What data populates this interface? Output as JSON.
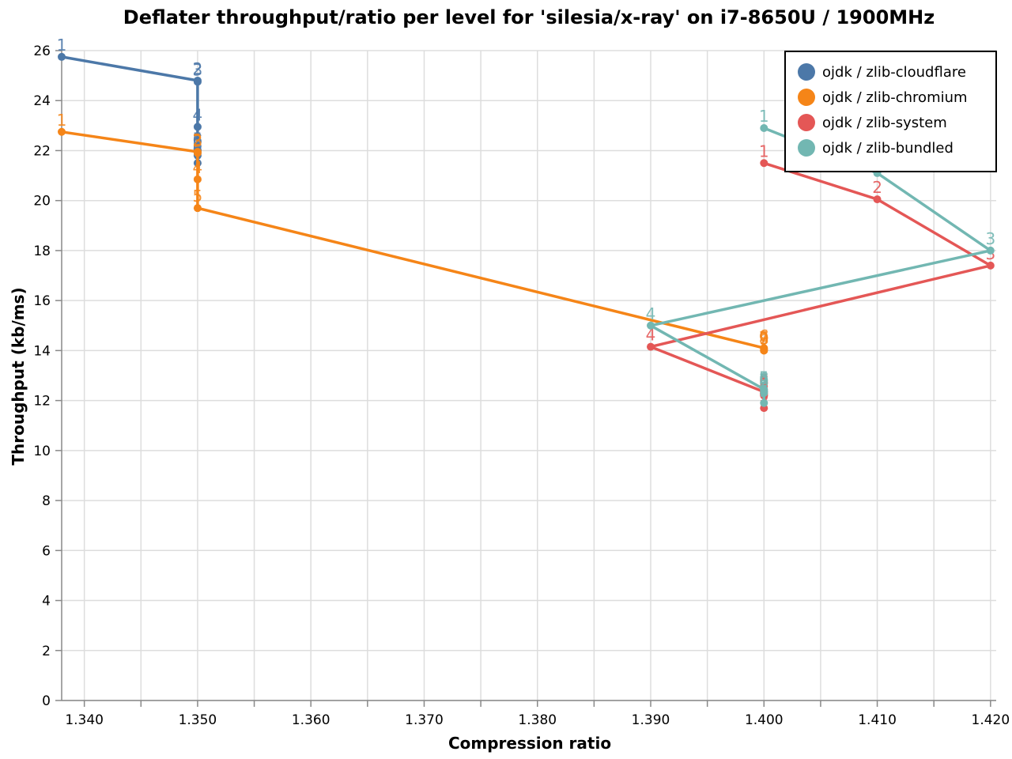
{
  "chart_data": {
    "type": "line",
    "title": "Deflater throughput/ratio per level for 'silesia/x-ray' on i7-8650U / 1900MHz",
    "xlabel": "Compression ratio",
    "ylabel": "Throughput (kb/ms)",
    "xlim": [
      1.338,
      1.4205
    ],
    "ylim": [
      0,
      26
    ],
    "x_ticks": [
      1.34,
      1.35,
      1.36,
      1.37,
      1.38,
      1.39,
      1.4,
      1.41,
      1.42
    ],
    "x_tick_labels": [
      "1.340",
      "1.350",
      "1.360",
      "1.370",
      "1.380",
      "1.390",
      "1.400",
      "1.410",
      "1.420"
    ],
    "y_ticks": [
      0,
      2,
      4,
      6,
      8,
      10,
      12,
      14,
      16,
      18,
      20,
      22,
      24,
      26
    ],
    "y_tick_labels": [
      "0",
      "2",
      "4",
      "6",
      "8",
      "10",
      "12",
      "14",
      "16",
      "18",
      "20",
      "22",
      "24",
      "26"
    ],
    "grid": true,
    "legend_position": "top-right",
    "series": [
      {
        "name": "ojdk / zlib-cloudflare",
        "color": "#4c78a8",
        "points": [
          {
            "label": "1",
            "x": 1.338,
            "y": 25.75
          },
          {
            "label": "2",
            "x": 1.35,
            "y": 24.8
          },
          {
            "label": "3",
            "x": 1.35,
            "y": 24.75
          },
          {
            "label": "4",
            "x": 1.35,
            "y": 22.95
          },
          {
            "label": "5",
            "x": 1.35,
            "y": 22.0
          },
          {
            "label": "6",
            "x": 1.35,
            "y": 21.95
          },
          {
            "label": "7",
            "x": 1.35,
            "y": 21.9
          },
          {
            "label": "8",
            "x": 1.35,
            "y": 21.8
          },
          {
            "label": "9",
            "x": 1.35,
            "y": 21.5
          }
        ]
      },
      {
        "name": "ojdk / zlib-chromium",
        "color": "#f58518",
        "points": [
          {
            "label": "1",
            "x": 1.338,
            "y": 22.75
          },
          {
            "label": "2",
            "x": 1.35,
            "y": 21.95
          },
          {
            "label": "3",
            "x": 1.35,
            "y": 21.9
          },
          {
            "label": "4",
            "x": 1.35,
            "y": 20.85
          },
          {
            "label": "5",
            "x": 1.35,
            "y": 19.7
          },
          {
            "label": "6",
            "x": 1.4,
            "y": 14.1
          },
          {
            "label": "7",
            "x": 1.4,
            "y": 14.05
          },
          {
            "label": "8",
            "x": 1.4,
            "y": 14.0
          },
          {
            "label": "9",
            "x": 1.4,
            "y": 14.0
          }
        ]
      },
      {
        "name": "ojdk / zlib-system",
        "color": "#e45756",
        "points": [
          {
            "label": "1",
            "x": 1.4,
            "y": 21.5
          },
          {
            "label": "2",
            "x": 1.41,
            "y": 20.05
          },
          {
            "label": "3",
            "x": 1.42,
            "y": 17.4
          },
          {
            "label": "4",
            "x": 1.39,
            "y": 14.15
          },
          {
            "label": "5",
            "x": 1.4,
            "y": 12.35
          },
          {
            "label": "6",
            "x": 1.4,
            "y": 12.3
          },
          {
            "label": "7",
            "x": 1.4,
            "y": 12.25
          },
          {
            "label": "8",
            "x": 1.4,
            "y": 12.2
          },
          {
            "label": "9",
            "x": 1.4,
            "y": 11.7
          }
        ]
      },
      {
        "name": "ojdk / zlib-bundled",
        "color": "#72b7b2",
        "points": [
          {
            "label": "1",
            "x": 1.4,
            "y": 22.9
          },
          {
            "label": "2",
            "x": 1.41,
            "y": 21.1
          },
          {
            "label": "3",
            "x": 1.42,
            "y": 18.0
          },
          {
            "label": "4",
            "x": 1.39,
            "y": 15.0
          },
          {
            "label": "5",
            "x": 1.4,
            "y": 12.45
          },
          {
            "label": "6",
            "x": 1.4,
            "y": 12.4
          },
          {
            "label": "7",
            "x": 1.4,
            "y": 12.35
          },
          {
            "label": "8",
            "x": 1.4,
            "y": 12.3
          },
          {
            "label": "9",
            "x": 1.4,
            "y": 11.9
          }
        ]
      }
    ]
  }
}
